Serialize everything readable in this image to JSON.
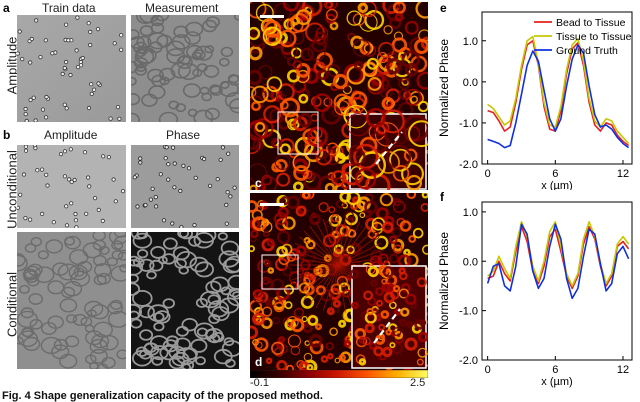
{
  "panel_a": {
    "letter": "a",
    "col1": "Train data",
    "col2": "Measurement",
    "row_label": "Amplitude"
  },
  "panel_b": {
    "letter": "b",
    "col1": "Amplitude",
    "col2": "Phase",
    "row1_label": "Unconditional",
    "row2_label": "Conditional"
  },
  "panel_c_label": "c",
  "panel_d_label": "d",
  "colorbar": {
    "min_label": "-0.1",
    "max_label": "2.5",
    "colors": [
      "#000000",
      "#3a0000",
      "#8b0000",
      "#d01a00",
      "#ff5a00",
      "#ffb000",
      "#ffff60"
    ]
  },
  "chart_data": [
    {
      "panel": "e",
      "type": "line",
      "xlabel": "x (µm)",
      "ylabel": "Normalized Phase",
      "xlim": [
        -0.5,
        12.8
      ],
      "ylim": [
        -2.0,
        1.7
      ],
      "xticks": [
        0,
        6,
        12
      ],
      "yticks": [
        1.0,
        0.0,
        -1.0,
        -2.0
      ],
      "ytick_labels": [
        "1.0",
        "0.0",
        "-1.0",
        "-2.0"
      ],
      "legend_loc": "top-right",
      "series": [
        {
          "name": "Bead to Tissue",
          "color": "#e82020",
          "x": [
            0,
            0.5,
            1,
            1.5,
            2,
            2.5,
            3,
            3.5,
            4,
            4.5,
            5,
            5.5,
            6,
            6.5,
            7,
            7.5,
            8,
            8.5,
            9,
            9.5,
            10,
            10.5,
            11,
            11.5,
            12,
            12.5
          ],
          "y": [
            -0.7,
            -0.75,
            -0.95,
            -1.2,
            -1.1,
            -0.5,
            0.3,
            0.9,
            1.0,
            0.4,
            -0.6,
            -1.15,
            -1.2,
            -0.7,
            0.2,
            0.8,
            0.95,
            0.4,
            -0.5,
            -1.05,
            -1.2,
            -1.0,
            -1.05,
            -1.3,
            -1.45,
            -1.55
          ]
        },
        {
          "name": "Tissue to Tissue",
          "color": "#c8c800",
          "x": [
            0,
            0.5,
            1,
            1.5,
            2,
            2.5,
            3,
            3.5,
            4,
            4.5,
            5,
            5.5,
            6,
            6.5,
            7,
            7.5,
            8,
            8.5,
            9,
            9.5,
            10,
            10.5,
            11,
            11.5,
            12,
            12.5
          ],
          "y": [
            -0.55,
            -0.65,
            -0.85,
            -1.05,
            -0.95,
            -0.4,
            0.4,
            1.0,
            1.1,
            0.45,
            -0.5,
            -1.05,
            -1.1,
            -0.6,
            0.3,
            0.9,
            1.05,
            0.5,
            -0.4,
            -0.95,
            -1.1,
            -0.9,
            -0.95,
            -1.2,
            -1.35,
            -1.5
          ]
        },
        {
          "name": "Ground Truth",
          "color": "#1030e0",
          "x": [
            0,
            0.5,
            1,
            1.5,
            2,
            2.5,
            3,
            3.5,
            4,
            4.5,
            5,
            5.5,
            6,
            6.5,
            7,
            7.5,
            8,
            8.5,
            9,
            9.5,
            10,
            10.5,
            11,
            11.5,
            12,
            12.5
          ],
          "y": [
            -1.4,
            -1.45,
            -1.5,
            -1.6,
            -1.55,
            -1.0,
            -0.3,
            0.4,
            0.75,
            0.5,
            -0.2,
            -0.9,
            -1.2,
            -0.9,
            -0.1,
            0.55,
            0.9,
            0.7,
            -0.1,
            -0.8,
            -1.1,
            -1.05,
            -1.15,
            -1.35,
            -1.5,
            -1.6
          ]
        }
      ]
    },
    {
      "panel": "f",
      "type": "line",
      "xlabel": "x (µm)",
      "ylabel": "Normalized Phase",
      "xlim": [
        -0.5,
        12.8
      ],
      "ylim": [
        -2.0,
        1.2
      ],
      "xticks": [
        0,
        6,
        12
      ],
      "yticks": [
        1.0,
        0.0,
        -1.0,
        -2.0
      ],
      "ytick_labels": [
        "1.0",
        "0.0",
        "-1.0",
        "-2.0"
      ],
      "series": [
        {
          "name": "Bead to Tissue",
          "color": "#e82020",
          "x": [
            0,
            0.5,
            1,
            1.5,
            2,
            2.5,
            3,
            3.5,
            4,
            4.5,
            5,
            5.5,
            6,
            6.5,
            7,
            7.5,
            8,
            8.5,
            9,
            9.5,
            10,
            10.5,
            11,
            11.5,
            12,
            12.5
          ],
          "y": [
            -0.35,
            -0.3,
            0.0,
            -0.25,
            -0.4,
            0.2,
            0.7,
            0.4,
            -0.2,
            -0.45,
            -0.1,
            0.5,
            0.65,
            0.2,
            -0.3,
            -0.55,
            -0.3,
            0.35,
            0.7,
            0.45,
            -0.1,
            -0.5,
            -0.3,
            0.3,
            0.4,
            0.25
          ]
        },
        {
          "name": "Tissue to Tissue",
          "color": "#c8c800",
          "x": [
            0,
            0.5,
            1,
            1.5,
            2,
            2.5,
            3,
            3.5,
            4,
            4.5,
            5,
            5.5,
            6,
            6.5,
            7,
            7.5,
            8,
            8.5,
            9,
            9.5,
            10,
            10.5,
            11,
            11.5,
            12,
            12.5
          ],
          "y": [
            -0.3,
            -0.2,
            0.1,
            -0.15,
            -0.35,
            0.3,
            0.8,
            0.5,
            -0.1,
            -0.4,
            0.0,
            0.6,
            0.8,
            0.3,
            -0.25,
            -0.5,
            -0.25,
            0.45,
            0.8,
            0.5,
            -0.05,
            -0.45,
            -0.25,
            0.35,
            0.5,
            0.35
          ]
        },
        {
          "name": "Ground Truth",
          "color": "#1030e0",
          "x": [
            0,
            0.5,
            1,
            1.5,
            2,
            2.5,
            3,
            3.5,
            4,
            4.5,
            5,
            5.5,
            6,
            6.5,
            7,
            7.5,
            8,
            8.5,
            9,
            9.5,
            10,
            10.5,
            11,
            11.5,
            12,
            12.5
          ],
          "y": [
            -0.45,
            -0.1,
            -0.05,
            -0.5,
            -0.6,
            -0.1,
            0.75,
            0.55,
            -0.2,
            -0.55,
            -0.35,
            0.3,
            0.75,
            0.45,
            -0.35,
            -0.75,
            -0.55,
            0.1,
            0.65,
            0.55,
            -0.05,
            -0.6,
            -0.45,
            0.15,
            0.3,
            0.05
          ]
        }
      ]
    }
  ],
  "caption_fragment": "Fig. 4 Shape generalization capacity of the proposed method."
}
